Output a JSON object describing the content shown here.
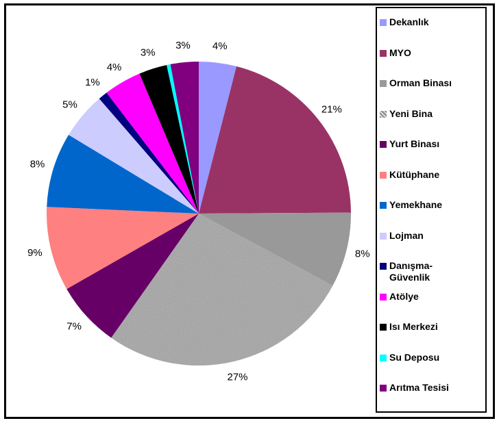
{
  "chart_data": {
    "type": "pie",
    "categories": [
      "Dekanlık",
      "MYO",
      "Orman Binası",
      "Yeni Bina",
      "Yurt Binası",
      "Kütüphane",
      "Yemekhane",
      "Lojman",
      "Danışma-Güvenlik",
      "Atölye",
      "Isı Merkezi",
      "Su Deposu",
      "Arıtma Tesisi"
    ],
    "values": [
      4,
      21,
      8,
      27,
      7,
      9,
      8,
      5,
      1,
      4,
      3,
      0.4,
      3
    ],
    "value_labels": [
      "4%",
      "21%",
      "8%",
      "27%",
      "7%",
      "9%",
      "8%",
      "5%",
      "1%",
      "4%",
      "3%",
      null,
      "3%"
    ],
    "colors": [
      "#9999ff",
      "#993366",
      "#999999",
      "#b0b0b0",
      "#660066",
      "#ff8080",
      "#0066cc",
      "#ccccff",
      "#000080",
      "#ff00ff",
      "#000000",
      "#00ffff",
      "#800080"
    ],
    "textured": [
      false,
      false,
      false,
      true,
      false,
      false,
      false,
      false,
      false,
      false,
      false,
      false,
      false
    ],
    "legend": "right"
  }
}
